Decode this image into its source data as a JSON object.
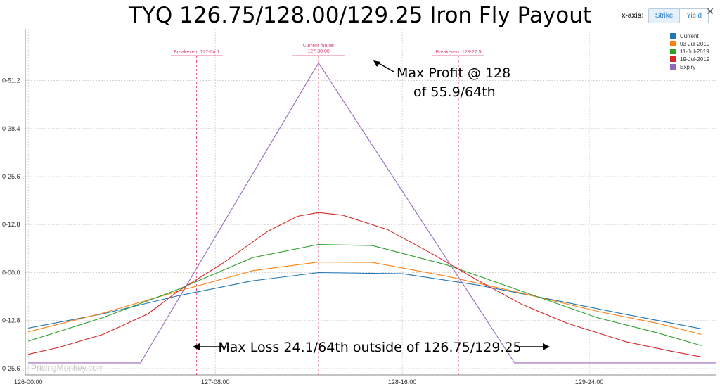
{
  "title": "TYQ 126.75/128.00/129.25 Iron Fly Payout",
  "toolbar": {
    "label": "x-axis:",
    "options": [
      "Strike",
      "Yield"
    ],
    "selected": "Strike"
  },
  "watermark": "PricingMonkey.com",
  "colors": {
    "current": "#1f77b4",
    "d1": "#ff7f0e",
    "d2": "#2ca02c",
    "d3": "#d62728",
    "expiry": "#9467bd",
    "marker": "#e0457b"
  },
  "chart_data": {
    "type": "line",
    "x_ticks": [
      {
        "x": 126.0,
        "label": "126-00.00"
      },
      {
        "x": 127.25,
        "label": "127-08.00"
      },
      {
        "x": 128.5,
        "label": "128-16.00"
      },
      {
        "x": 129.75,
        "label": "129-24.00"
      }
    ],
    "y_ticks": [
      {
        "y": -25.6,
        "label": "0-25.6"
      },
      {
        "y": -12.8,
        "label": "0-12.8"
      },
      {
        "y": 0,
        "label": "0-00.0"
      },
      {
        "y": 12.8,
        "label": "0-12.8"
      },
      {
        "y": 25.6,
        "label": "0-25.6"
      },
      {
        "y": 38.4,
        "label": "0-38.4"
      },
      {
        "y": 51.2,
        "label": "0-51.2"
      }
    ],
    "xlim": [
      125.98,
      130.6
    ],
    "ylim": [
      -27.3,
      65.0
    ],
    "grid": true,
    "legend_position": "top-right",
    "series": [
      {
        "name": "Current",
        "color": "#1f77b4",
        "x": [
          126.0,
          126.5,
          127.0,
          127.5,
          127.94,
          128.5,
          129.0,
          129.5,
          130.0,
          130.5
        ],
        "y": [
          -14.8,
          -11.0,
          -6.2,
          -2.2,
          0.0,
          -0.3,
          -3.3,
          -7.2,
          -11.2,
          -15.0
        ]
      },
      {
        "name": "03-Jul-2019",
        "color": "#ff7f0e",
        "x": [
          126.0,
          126.5,
          127.0,
          127.5,
          127.94,
          128.3,
          128.8,
          129.3,
          129.8,
          130.2,
          130.5
        ],
        "y": [
          -15.8,
          -10.8,
          -5.0,
          0.5,
          2.8,
          2.7,
          -1.0,
          -5.5,
          -10.3,
          -13.5,
          -16.5
        ]
      },
      {
        "name": "11-Jul-2019",
        "color": "#2ca02c",
        "x": [
          126.0,
          126.5,
          127.0,
          127.5,
          127.94,
          128.3,
          128.8,
          129.3,
          129.8,
          130.2,
          130.5
        ],
        "y": [
          -18.3,
          -12.0,
          -4.5,
          4.0,
          7.5,
          7.2,
          2.0,
          -5.0,
          -12.0,
          -16.0,
          -19.5
        ]
      },
      {
        "name": "19-Jul-2019",
        "color": "#d62728",
        "x": [
          126.0,
          126.2,
          126.5,
          126.8,
          127.0,
          127.3,
          127.6,
          127.8,
          127.94,
          128.1,
          128.4,
          128.7,
          129.0,
          129.3,
          129.6,
          130.0,
          130.3,
          130.5
        ],
        "y": [
          -21.8,
          -20.0,
          -16.5,
          -11.0,
          -5.0,
          2.5,
          11.0,
          15.0,
          16.0,
          15.3,
          11.5,
          5.0,
          -2.0,
          -8.5,
          -13.5,
          -18.5,
          -21.0,
          -22.5
        ]
      },
      {
        "name": "Expiry",
        "color": "#9467bd",
        "x": [
          126.0,
          126.75,
          127.94,
          129.25,
          130.6
        ],
        "y": [
          -24.1,
          -24.1,
          55.9,
          -24.1,
          -24.1
        ]
      }
    ],
    "markers": [
      {
        "x": 127.125,
        "label": "Breakeven: 127-04.1"
      },
      {
        "x": 127.94,
        "label": "Current future: 127-30.00"
      },
      {
        "x": 128.875,
        "label": "Breakeven: 128-27.9"
      }
    ],
    "annotations": [
      {
        "text": "Max Profit @ 128",
        "text2": "of 55.9/64th"
      },
      {
        "text": "Max Loss 24.1/64th outside of 126.75/129.25"
      }
    ]
  }
}
